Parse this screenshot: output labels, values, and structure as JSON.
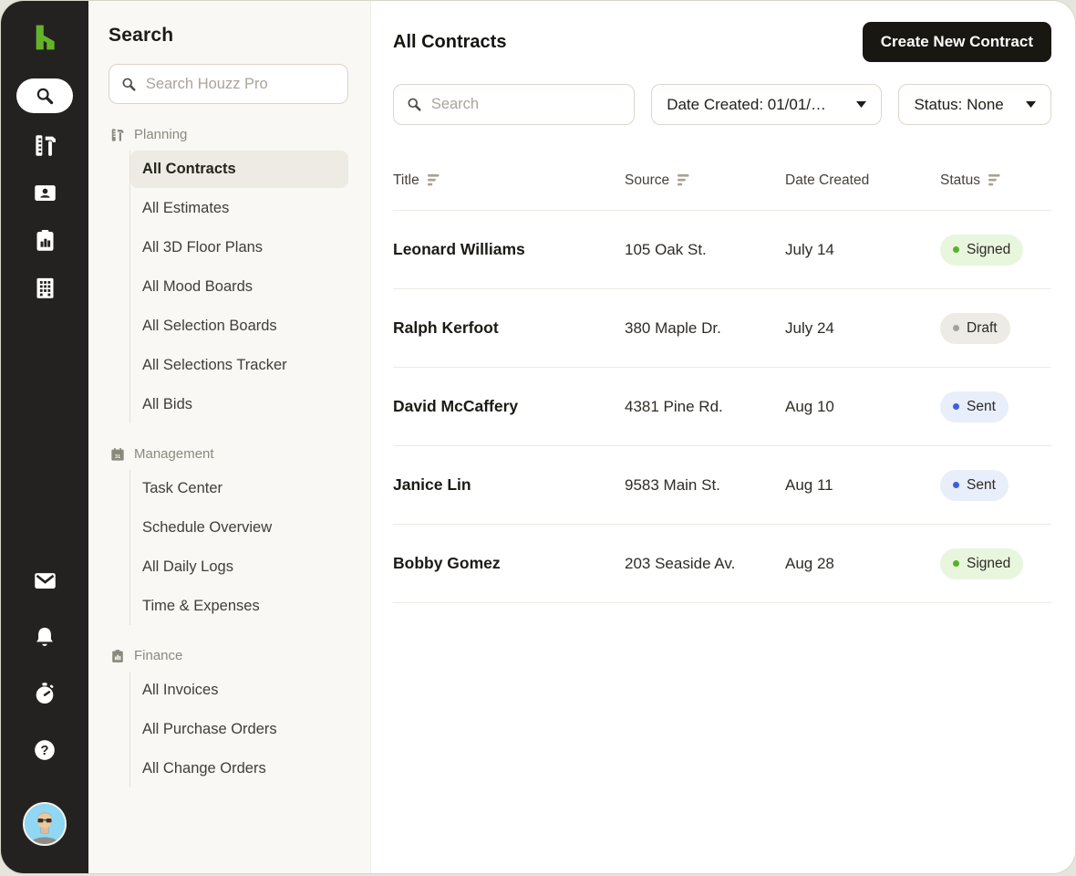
{
  "rail": {
    "bg_color": "#242220",
    "logo_color": "#63b32a",
    "icons_top": [
      "houzz-logo",
      "search-icon",
      "planning-tools-icon",
      "contacts-icon",
      "reports-icon",
      "company-building-icon"
    ],
    "icons_bottom": [
      "mail-icon",
      "notifications-bell-icon",
      "timer-icon",
      "help-icon",
      "user-avatar"
    ]
  },
  "sidebar": {
    "title": "Search",
    "search": {
      "placeholder": "Search Houzz Pro",
      "value": "",
      "icon": "search-icon"
    },
    "sections": [
      {
        "label": "Planning",
        "icon": "planning-tools-icon",
        "items": [
          {
            "label": "All Contracts",
            "active": true
          },
          {
            "label": "All Estimates"
          },
          {
            "label": "All 3D Floor Plans"
          },
          {
            "label": "All Mood Boards"
          },
          {
            "label": "All Selection Boards"
          },
          {
            "label": "All Selections Tracker"
          },
          {
            "label": "All Bids"
          }
        ]
      },
      {
        "label": "Management",
        "icon": "calendar-icon",
        "items": [
          {
            "label": "Task Center"
          },
          {
            "label": "Schedule Overview"
          },
          {
            "label": "All Daily Logs"
          },
          {
            "label": "Time & Expenses"
          }
        ]
      },
      {
        "label": "Finance",
        "icon": "finance-report-icon",
        "items": [
          {
            "label": "All Invoices"
          },
          {
            "label": "All Purchase Orders"
          },
          {
            "label": "All Change Orders"
          }
        ]
      }
    ]
  },
  "main": {
    "title": "All Contracts",
    "create_button_label": "Create New Contract",
    "search": {
      "placeholder": "Search",
      "value": "",
      "icon": "search-icon"
    },
    "filters": [
      {
        "label": "Date Created: 01/01/…"
      },
      {
        "label": "Status: None"
      }
    ],
    "table": {
      "columns": [
        {
          "label": "Title",
          "sortable": true
        },
        {
          "label": "Source",
          "sortable": true
        },
        {
          "label": "Date Created",
          "sortable": false
        },
        {
          "label": "Status",
          "sortable": true
        }
      ],
      "rows": [
        {
          "title": "Leonard Williams",
          "source": "105 Oak St.",
          "date_created": "July 14",
          "status": "Signed"
        },
        {
          "title": "Ralph Kerfoot",
          "source": "380 Maple Dr.",
          "date_created": "July 24",
          "status": "Draft"
        },
        {
          "title": "David McCaffery",
          "source": "4381 Pine Rd.",
          "date_created": "Aug 10",
          "status": "Sent"
        },
        {
          "title": "Janice Lin",
          "source": "9583 Main St.",
          "date_created": "Aug 11",
          "status": "Sent"
        },
        {
          "title": "Bobby Gomez",
          "source": "203 Seaside Av.",
          "date_created": "Aug 28",
          "status": "Signed"
        }
      ]
    },
    "status_styles": {
      "Signed": {
        "bg": "#e9f6de",
        "dot": "#55b426"
      },
      "Draft": {
        "bg": "#edebe6",
        "dot": "#a5a29a"
      },
      "Sent": {
        "bg": "#e9eefb",
        "dot": "#3d5de2"
      }
    }
  }
}
